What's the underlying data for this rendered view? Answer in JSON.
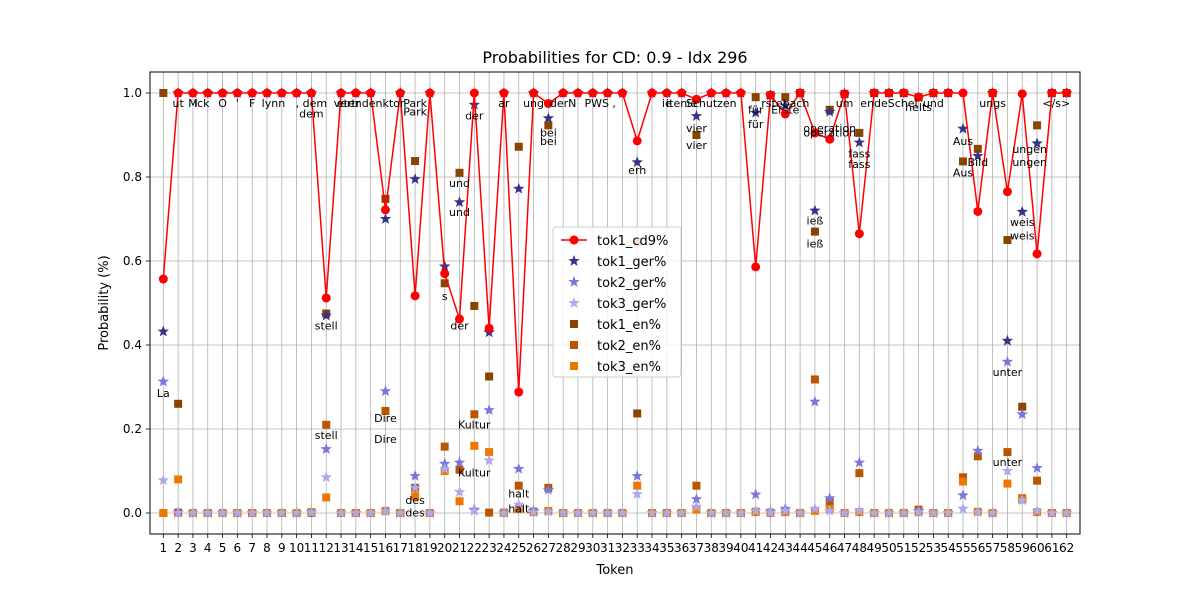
{
  "chart_data": {
    "type": "line",
    "title": "Probabilities for CD: 0.9 - Idx 296",
    "xlabel": "Token",
    "ylabel": "Probability (%)",
    "ylim": [
      -0.05,
      1.05
    ],
    "yticks": [
      "0.0",
      "0.2",
      "0.4",
      "0.6",
      "0.8",
      "1.0"
    ],
    "grid": true,
    "legend_position": "center",
    "x": [
      1,
      2,
      3,
      4,
      5,
      6,
      7,
      8,
      9,
      10,
      11,
      12,
      13,
      14,
      15,
      16,
      17,
      18,
      19,
      20,
      21,
      22,
      23,
      24,
      25,
      26,
      27,
      28,
      29,
      30,
      31,
      32,
      33,
      34,
      35,
      36,
      37,
      38,
      39,
      40,
      41,
      42,
      43,
      44,
      45,
      46,
      47,
      48,
      49,
      50,
      51,
      52,
      53,
      54,
      55,
      56,
      57,
      58,
      59,
      60,
      61,
      62
    ],
    "series": [
      {
        "name": "tok1_cd9%",
        "color": "#ff0000",
        "marker": "circle",
        "line": true,
        "values": [
          0.557,
          1,
          1,
          1,
          1,
          1,
          1,
          1,
          1,
          1,
          1,
          0.512,
          1,
          1,
          1,
          0.722,
          1,
          0.517,
          1,
          0.57,
          0.462,
          1,
          0.44,
          1,
          0.288,
          1,
          0.975,
          1,
          1,
          1,
          1,
          1,
          0.886,
          1,
          1,
          1,
          0.985,
          1,
          1,
          1,
          0.586,
          0.995,
          0.95,
          1,
          0.905,
          0.89,
          0.998,
          0.665,
          1,
          1,
          1,
          0.99,
          1,
          1,
          1,
          0.718,
          1,
          0.765,
          0.998,
          0.617,
          1,
          1
        ]
      },
      {
        "name": "tok1_ger%",
        "color": "#333388",
        "marker": "star",
        "values": [
          0.432,
          1,
          1,
          1,
          1,
          1,
          1,
          1,
          1,
          1,
          1,
          0.47,
          1,
          1,
          1,
          0.7,
          1,
          0.795,
          1,
          0.587,
          0.74,
          0.972,
          0.43,
          1,
          0.772,
          1,
          0.94,
          1,
          1,
          1,
          1,
          1,
          0.835,
          1,
          1,
          1,
          0.945,
          1,
          1,
          1,
          0.953,
          0.995,
          0.97,
          1,
          0.72,
          0.955,
          0.998,
          0.882,
          1,
          1,
          1,
          0.99,
          1,
          1,
          0.915,
          0.85,
          1,
          0.41,
          0.717,
          0.88,
          1,
          1
        ]
      },
      {
        "name": "tok2_ger%",
        "color": "#7777dd",
        "marker": "star",
        "values": [
          0.313,
          0.001,
          0,
          0,
          0,
          0,
          0,
          0,
          0,
          0,
          0.002,
          0.152,
          0,
          0,
          0,
          0.29,
          0,
          0.088,
          0,
          0.117,
          0.12,
          0.008,
          0.245,
          0.001,
          0.105,
          0.005,
          0.055,
          0,
          0,
          0,
          0,
          0,
          0.088,
          0,
          0,
          0,
          0.033,
          0,
          0,
          0,
          0.044,
          0.003,
          0.01,
          0,
          0.265,
          0.035,
          0,
          0.12,
          0,
          0,
          0,
          0.005,
          0,
          0,
          0.042,
          0.148,
          0,
          0.36,
          0.235,
          0.107,
          0,
          0
        ]
      },
      {
        "name": "tok3_ger%",
        "color": "#aaaaee",
        "marker": "star",
        "values": [
          0.078,
          0,
          0,
          0,
          0,
          0,
          0,
          0,
          0,
          0,
          0.001,
          0.085,
          0,
          0,
          0,
          0.004,
          0,
          0.06,
          0,
          0.105,
          0.05,
          0.005,
          0.125,
          0,
          0.02,
          0.002,
          0.003,
          0,
          0,
          0,
          0,
          0,
          0.045,
          0,
          0,
          0,
          0.015,
          0,
          0,
          0,
          0.005,
          0.001,
          0.005,
          0,
          0.01,
          0.005,
          0,
          0.005,
          0,
          0,
          0,
          0.002,
          0,
          0,
          0.01,
          0.002,
          0,
          0.1,
          0.03,
          0.005,
          0,
          0
        ]
      },
      {
        "name": "tok1_en%",
        "color": "#884400",
        "marker": "square",
        "values": [
          1,
          0.26,
          0,
          0,
          0,
          0,
          0,
          0,
          0,
          0,
          0,
          0.475,
          0,
          0,
          0,
          0.748,
          0,
          0.838,
          0,
          0.547,
          0.81,
          0.493,
          0.325,
          0,
          0.872,
          0.003,
          0.923,
          0,
          0,
          0,
          0,
          0,
          0.237,
          0,
          0,
          0,
          0.9,
          0,
          0,
          0,
          0.99,
          0.995,
          0.99,
          1,
          0.67,
          0.96,
          0.998,
          0.905,
          1,
          1,
          1,
          0.99,
          1,
          1,
          0.837,
          0.867,
          1,
          0.65,
          0.253,
          0.923,
          1,
          1
        ]
      },
      {
        "name": "tok2_en%",
        "color": "#bb5500",
        "marker": "square",
        "values": [
          0,
          0.001,
          0,
          0,
          0,
          0,
          0,
          0,
          0,
          0,
          0.002,
          0.21,
          0,
          0,
          0,
          0.243,
          0,
          0.06,
          0,
          0.158,
          0.103,
          0.235,
          0.001,
          0.001,
          0.065,
          0.003,
          0.06,
          0,
          0,
          0,
          0,
          0,
          0.645,
          0,
          0,
          0,
          0.065,
          0,
          0,
          0,
          0.003,
          0.001,
          0.003,
          0,
          0.318,
          0.025,
          0,
          0.095,
          0,
          0,
          0,
          0.008,
          0,
          0,
          0.085,
          0.135,
          0,
          0.145,
          0.035,
          0.077,
          0,
          0
        ]
      },
      {
        "name": "tok3_en%",
        "color": "#ee7700",
        "marker": "square",
        "values": [
          0,
          0.08,
          0,
          0,
          0,
          0,
          0,
          0,
          0,
          0,
          0.001,
          0.037,
          0,
          0,
          0,
          0.005,
          0,
          0.04,
          0,
          0.1,
          0.028,
          0.16,
          0.145,
          0,
          0.01,
          0.002,
          0.005,
          0,
          0,
          0,
          0,
          0,
          0.065,
          0,
          0,
          0,
          0.008,
          0,
          0,
          0,
          0.002,
          0,
          0.002,
          0,
          0.005,
          0.01,
          0,
          0.002,
          0,
          0,
          0,
          0.002,
          0,
          0,
          0.075,
          0.003,
          0,
          0.07,
          0.032,
          0.002,
          0,
          0
        ]
      }
    ],
    "annotations": [
      {
        "x": 1,
        "y": 0.31,
        "text": "La"
      },
      {
        "x": 2,
        "y": 1.0,
        "text": "ut"
      },
      {
        "x": 3,
        "y": 1.0,
        "text": "M"
      },
      {
        "x": 3.6,
        "y": 1.0,
        "text": "ick"
      },
      {
        "x": 5,
        "y": 1.0,
        "text": "O"
      },
      {
        "x": 6,
        "y": 1.0,
        "text": "'"
      },
      {
        "x": 7,
        "y": 1.0,
        "text": "F"
      },
      {
        "x": 8.2,
        "y": 1.0,
        "text": "lyn"
      },
      {
        "x": 9,
        "y": 1.0,
        "text": "n"
      },
      {
        "x": 11,
        "y": 1.0,
        "text": ", dem"
      },
      {
        "x": 11,
        "y": 0.975,
        "text": "dem"
      },
      {
        "x": 12,
        "y": 0.47,
        "text": "stell"
      },
      {
        "x": 12,
        "y": 0.21,
        "text": "stell"
      },
      {
        "x": 13.4,
        "y": 1.0,
        "text": "vertr"
      },
      {
        "x": 15,
        "y": 1.0,
        "text": "etendenktor"
      },
      {
        "x": 18,
        "y": 1.0,
        "text": "Park"
      },
      {
        "x": 18,
        "y": 0.98,
        "text": "Park"
      },
      {
        "x": 16,
        "y": 0.25,
        "text": "Dire"
      },
      {
        "x": 16,
        "y": 0.2,
        "text": "Dire"
      },
      {
        "x": 18,
        "y": 0.055,
        "text": "des"
      },
      {
        "x": 18,
        "y": 0.025,
        "text": "des"
      },
      {
        "x": 20,
        "y": 0.54,
        "text": "s"
      },
      {
        "x": 21,
        "y": 0.81,
        "text": "und"
      },
      {
        "x": 21,
        "y": 0.74,
        "text": "und"
      },
      {
        "x": 21,
        "y": 0.47,
        "text": "der"
      },
      {
        "x": 22,
        "y": 0.97,
        "text": "der"
      },
      {
        "x": 22,
        "y": 0.235,
        "text": "Kultur"
      },
      {
        "x": 22,
        "y": 0.12,
        "text": "Kultur"
      },
      {
        "x": 24,
        "y": 1.0,
        "text": "ar"
      },
      {
        "x": 25,
        "y": 0.07,
        "text": "halt"
      },
      {
        "x": 25,
        "y": 0.035,
        "text": "halt"
      },
      {
        "x": 26,
        "y": 1.0,
        "text": "ung"
      },
      {
        "x": 27,
        "y": 0.93,
        "text": "bei"
      },
      {
        "x": 27,
        "y": 0.91,
        "text": "bei"
      },
      {
        "x": 28,
        "y": 1.0,
        "text": "derN"
      },
      {
        "x": 30.5,
        "y": 1.0,
        "text": "PWS ,"
      },
      {
        "x": 33,
        "y": 0.84,
        "text": "erh"
      },
      {
        "x": 35,
        "y": 1.0,
        "text": "ie"
      },
      {
        "x": 36,
        "y": 1.0,
        "text": "itenie"
      },
      {
        "x": 37,
        "y": 0.94,
        "text": "vier"
      },
      {
        "x": 37,
        "y": 0.9,
        "text": "vier"
      },
      {
        "x": 38,
        "y": 1.0,
        "text": "Schutzen"
      },
      {
        "x": 41,
        "y": 0.985,
        "text": "für"
      },
      {
        "x": 41,
        "y": 0.95,
        "text": "für"
      },
      {
        "x": 43,
        "y": 1.0,
        "text": "rstebach"
      },
      {
        "x": 43,
        "y": 0.985,
        "text": "Erste"
      },
      {
        "x": 45,
        "y": 0.72,
        "text": "ieß"
      },
      {
        "x": 45,
        "y": 0.665,
        "text": "ieß"
      },
      {
        "x": 46,
        "y": 0.94,
        "text": "operation"
      },
      {
        "x": 46,
        "y": 0.93,
        "text": "operation"
      },
      {
        "x": 47,
        "y": 1.0,
        "text": "um"
      },
      {
        "x": 48,
        "y": 0.88,
        "text": "fass"
      },
      {
        "x": 48,
        "y": 0.855,
        "text": "fass"
      },
      {
        "x": 50,
        "y": 1.0,
        "text": "endeSchel"
      },
      {
        "x": 52,
        "y": 0.99,
        "text": "helts"
      },
      {
        "x": 53,
        "y": 1.0,
        "text": "und"
      },
      {
        "x": 55,
        "y": 0.91,
        "text": "Aus"
      },
      {
        "x": 55,
        "y": 0.835,
        "text": "Aus"
      },
      {
        "x": 56,
        "y": 0.86,
        "text": "Bild"
      },
      {
        "x": 57,
        "y": 1.0,
        "text": "ungs"
      },
      {
        "x": 58,
        "y": 0.36,
        "text": "unter"
      },
      {
        "x": 58,
        "y": 0.145,
        "text": "unter"
      },
      {
        "x": 59,
        "y": 0.717,
        "text": "weis"
      },
      {
        "x": 59,
        "y": 0.685,
        "text": "weis"
      },
      {
        "x": 59.5,
        "y": 0.89,
        "text": "ungen"
      },
      {
        "x": 59.5,
        "y": 0.86,
        "text": "ungen"
      },
      {
        "x": 61.3,
        "y": 1.0,
        "text": "</s>"
      }
    ]
  }
}
